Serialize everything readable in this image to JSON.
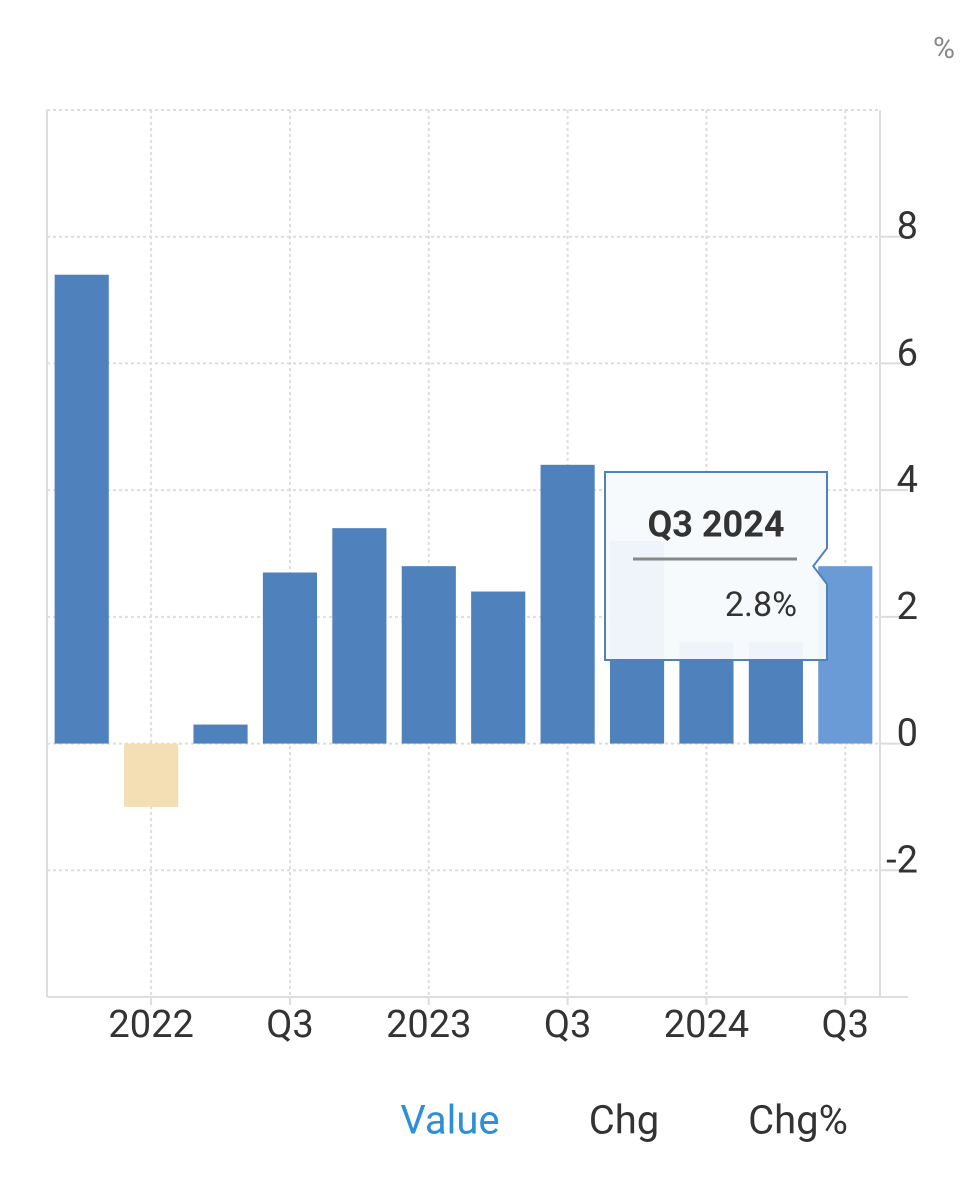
{
  "chart_data": {
    "type": "bar",
    "unit": "%",
    "categories": [
      null,
      "2022",
      null,
      "Q3",
      null,
      "2023",
      null,
      "Q3",
      null,
      "2024",
      null,
      "Q3"
    ],
    "values": [
      7.4,
      -1.0,
      0.3,
      2.7,
      3.4,
      2.8,
      2.4,
      4.4,
      3.2,
      1.6,
      1.6,
      2.8
    ],
    "value_labels": [
      null,
      null,
      null,
      null,
      null,
      null,
      null,
      null,
      null,
      null,
      null,
      "2.8%"
    ],
    "color": "#4f81bd",
    "negative_color": "#f4deb4",
    "highlight_color": "#6a9bd6",
    "highlight_index": 11,
    "tooltip": {
      "title": "Q3 2024"
    },
    "ylim": [
      -4,
      10
    ],
    "yticks": [
      -2,
      0,
      2,
      4,
      6,
      8
    ],
    "grid": true,
    "tabs": [
      "Value",
      "Chg",
      "Chg%"
    ],
    "active_tab": 0
  }
}
